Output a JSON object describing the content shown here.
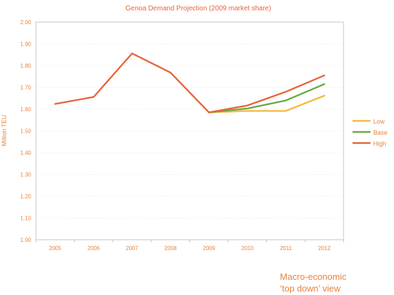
{
  "chart_data": {
    "type": "line",
    "title": "Genoa Demand Projection (2009 market share)",
    "ylabel": "Million TEU",
    "xlabel": "",
    "categories": [
      "2005",
      "2006",
      "2007",
      "2008",
      "2009",
      "2010",
      "2011",
      "2012"
    ],
    "ylim": [
      1.0,
      2.0
    ],
    "yticks": [
      "1.00",
      "1.10",
      "1.20",
      "1.30",
      "1.40",
      "1.50",
      "1.60",
      "1.70",
      "1.80",
      "1.90",
      "2.00"
    ],
    "grid": true,
    "legend_position": "right",
    "series": [
      {
        "name": "Low",
        "color": "#f5b942",
        "values": [
          null,
          null,
          null,
          null,
          1.585,
          1.592,
          1.592,
          1.662
        ]
      },
      {
        "name": "Base",
        "color": "#6aaa45",
        "values": [
          null,
          null,
          null,
          null,
          1.585,
          1.603,
          1.64,
          1.715
        ]
      },
      {
        "name": "High",
        "color": "#e8643a",
        "values": [
          1.624,
          1.656,
          1.856,
          1.768,
          1.585,
          1.617,
          1.68,
          1.755
        ]
      }
    ]
  },
  "colors": {
    "text": "#e8833a",
    "title": "#e8643a",
    "axis": "#b8b8b8",
    "grid": "#e4e4e4"
  },
  "caption": {
    "line1": "Macro-economic",
    "line2": "‘top down’ view"
  }
}
